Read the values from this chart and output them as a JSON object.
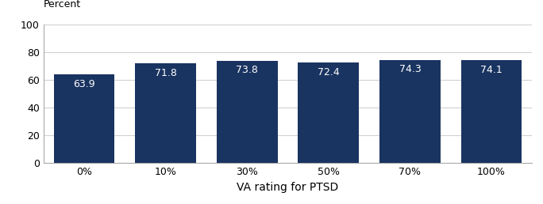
{
  "categories": [
    "0%",
    "10%",
    "30%",
    "50%",
    "70%",
    "100%"
  ],
  "values": [
    63.9,
    71.8,
    73.8,
    72.4,
    74.3,
    74.1
  ],
  "bar_color": "#1a3461",
  "bar_label_color": "#ffffff",
  "bar_label_fontsize": 9,
  "percent_label": "Percent",
  "percent_fontsize": 9,
  "xlabel": "VA rating for PTSD",
  "xlabel_fontsize": 10,
  "tick_fontsize": 9,
  "ylim": [
    0,
    100
  ],
  "yticks": [
    0,
    20,
    40,
    60,
    80,
    100
  ],
  "grid_color": "#d0d0d0",
  "background_color": "#ffffff",
  "bar_width": 0.75
}
